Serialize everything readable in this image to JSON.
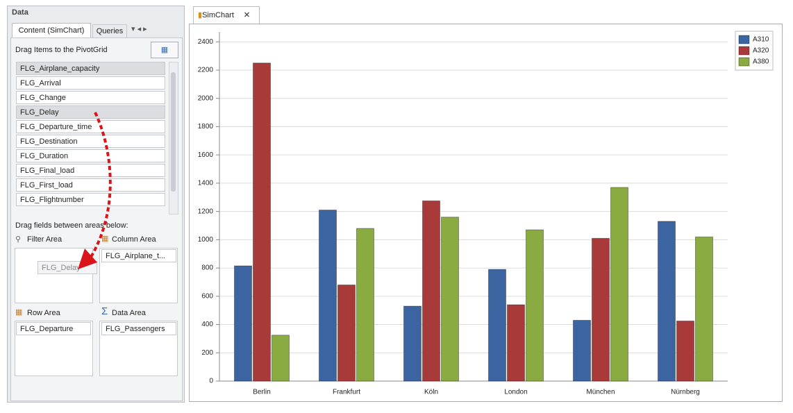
{
  "panel": {
    "title": "Data",
    "tabs": [
      "Content (SimChart)",
      "Queries"
    ],
    "drag_hint": "Drag Items to the PivotGrid",
    "fields": [
      "FLG_Airplane_capacity",
      "FLG_Arrival",
      "FLG_Change",
      "FLG_Delay",
      "FLG_Departure_time",
      "FLG_Destination",
      "FLG_Duration",
      "FLG_Final_load",
      "FLG_First_load",
      "FLG_Flightnumber"
    ],
    "areas_hint": "Drag fields between areas below:",
    "filter_area": "Filter Area",
    "column_area": "Column Area",
    "row_area": "Row Area",
    "data_area": "Data Area",
    "column_field": "FLG_Airplane_t...",
    "row_field": "FLG_Departure",
    "data_field": "FLG_Passengers",
    "drag_ghost": "FLG_Delay"
  },
  "tab": "SimChart",
  "chart_data": {
    "type": "bar",
    "categories": [
      "Berlin",
      "Frankfurt",
      "Köln",
      "London",
      "München",
      "Nürnberg"
    ],
    "series": [
      {
        "name": "A310",
        "color": "#3b64a0",
        "values": [
          815,
          1210,
          530,
          790,
          430,
          1130
        ]
      },
      {
        "name": "A320",
        "color": "#a83a3a",
        "values": [
          2250,
          680,
          1275,
          540,
          1010,
          425
        ]
      },
      {
        "name": "A380",
        "color": "#8aab42",
        "values": [
          325,
          1080,
          1160,
          1070,
          1370,
          1020
        ]
      }
    ],
    "ylim": [
      0,
      2470
    ],
    "yticks": [
      0,
      200,
      400,
      600,
      800,
      1000,
      1200,
      1400,
      1600,
      1800,
      2000,
      2200,
      2400
    ],
    "grid": true,
    "legend": "top-right"
  }
}
